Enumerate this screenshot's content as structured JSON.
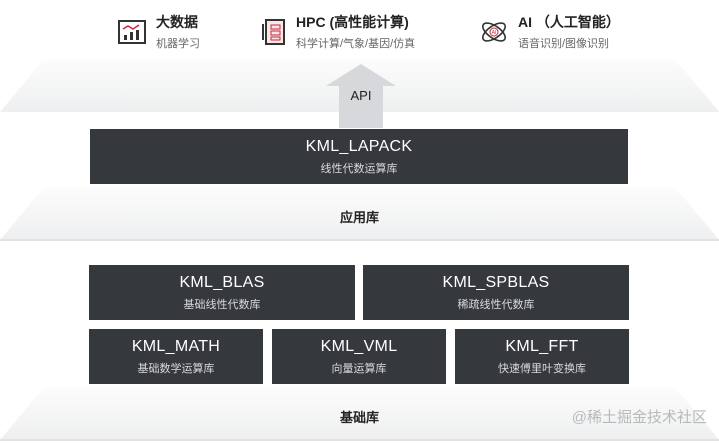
{
  "apps": [
    {
      "title": "大数据",
      "subtitle": "机器学习",
      "icon": "chart-icon"
    },
    {
      "title": "HPC (高性能计算)",
      "subtitle": "科学计算/气象/基因/仿真",
      "icon": "server-icon"
    },
    {
      "title": "AI （人工智能）",
      "subtitle": "语音识别/图像识别",
      "icon": "atom-ai-icon"
    }
  ],
  "api_label": "API",
  "app_layer": {
    "label": "应用库",
    "boxes": [
      {
        "title": "KML_LAPACK",
        "subtitle": "线性代数运算库"
      }
    ]
  },
  "base_layer": {
    "label": "基础库",
    "boxes": [
      {
        "title": "KML_BLAS",
        "subtitle": "基础线性代数库"
      },
      {
        "title": "KML_SPBLAS",
        "subtitle": "稀疏线性代数库"
      },
      {
        "title": "KML_MATH",
        "subtitle": "基础数学运算库"
      },
      {
        "title": "KML_VML",
        "subtitle": "向量运算库"
      },
      {
        "title": "KML_FFT",
        "subtitle": "快速傅里叶变换库"
      }
    ]
  },
  "watermark": "@稀土掘金技术社区",
  "colors": {
    "box": "#35383d",
    "accent": "#c8283c"
  }
}
